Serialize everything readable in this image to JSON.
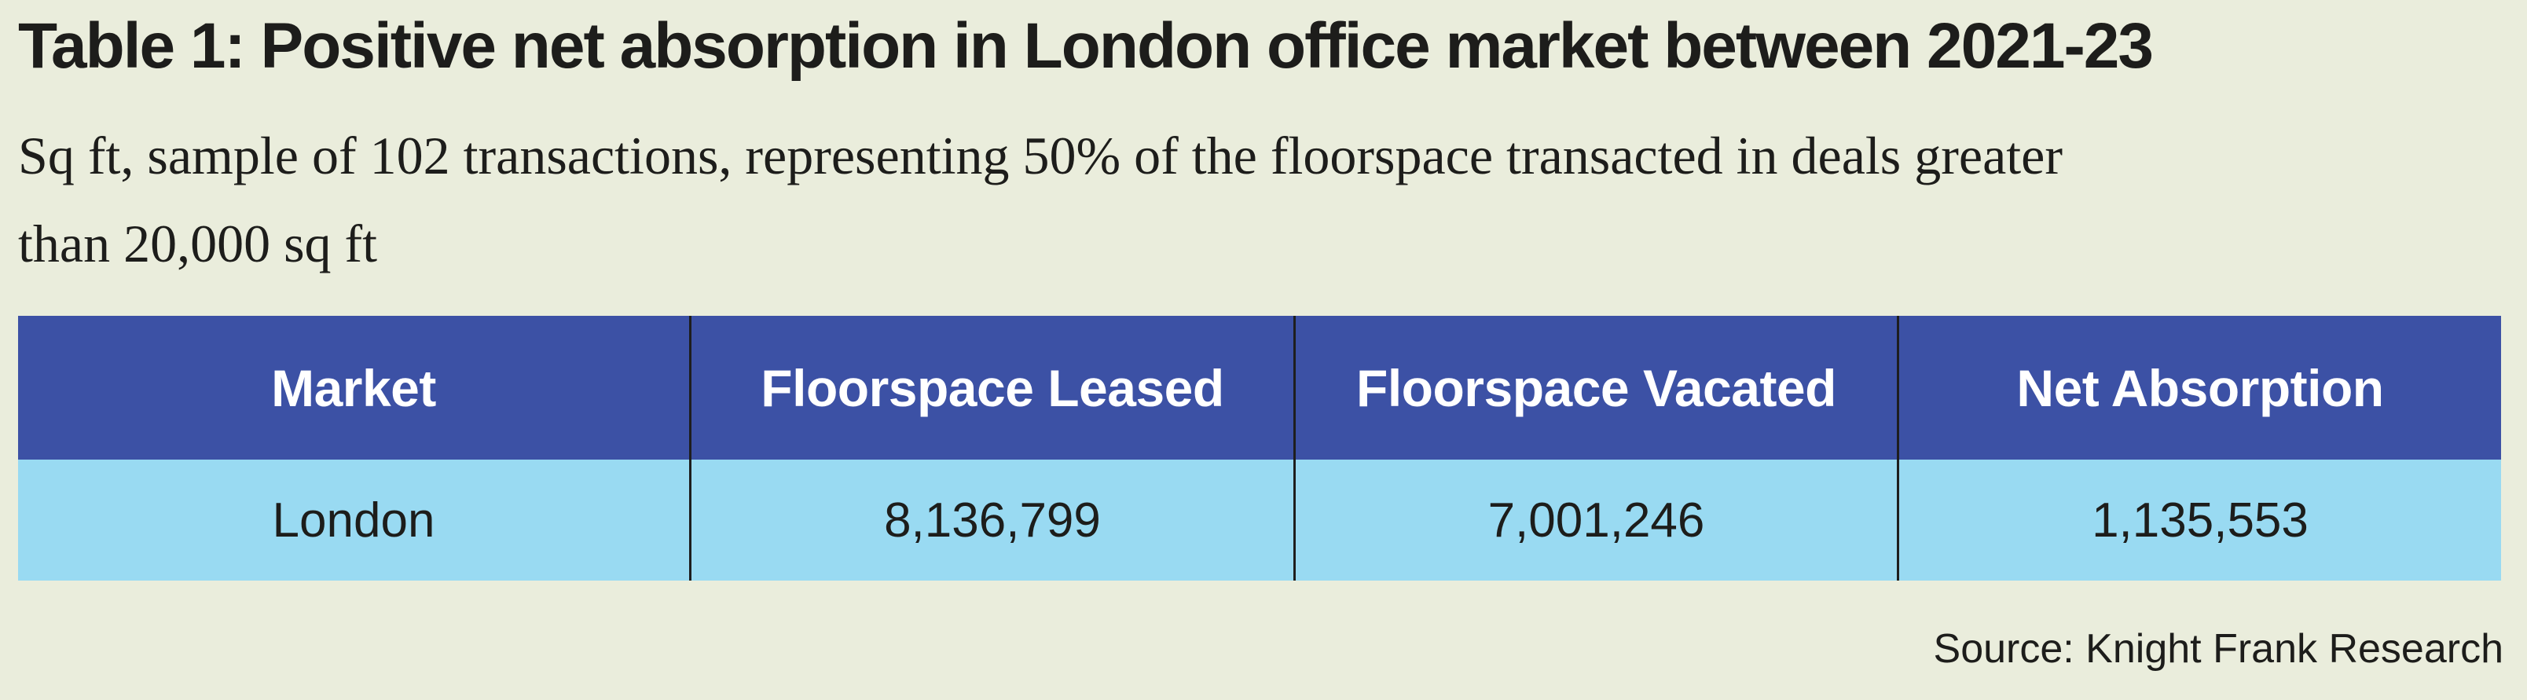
{
  "title": "Table 1: Positive net absorption in London office market between 2021-23",
  "subtitle": {
    "line1": "Sq ft, sample of 102 transactions, representing 50% of the floorspace transacted in deals greater",
    "line2": "than 20,000 sq ft"
  },
  "table": {
    "columns": [
      "Market",
      "Floorspace Leased",
      "Floorspace Vacated",
      "Net Absorption"
    ],
    "rows": [
      [
        "London",
        "8,136,799",
        "7,001,246",
        "1,135,553"
      ]
    ]
  },
  "source": "Source: Knight Frank Research",
  "colors": {
    "background": "#EAEDDC",
    "header_bg": "#3C51A5",
    "header_text": "#FFFFFF",
    "row_bg": "#99DAF2",
    "text": "#1D1D1B",
    "divider": "#1E1E1E"
  },
  "chart_data": {
    "type": "table",
    "title": "Table 1: Positive net absorption in London office market between 2021-23",
    "subtitle": "Sq ft, sample of 102 transactions, representing 50% of the floorspace transacted in deals greater than 20,000 sq ft",
    "columns": [
      "Market",
      "Floorspace Leased",
      "Floorspace Vacated",
      "Net Absorption"
    ],
    "rows": [
      {
        "market": "London",
        "floorspace_leased": 8136799,
        "floorspace_vacated": 7001246,
        "net_absorption": 1135553
      }
    ],
    "source": "Source: Knight Frank Research"
  }
}
